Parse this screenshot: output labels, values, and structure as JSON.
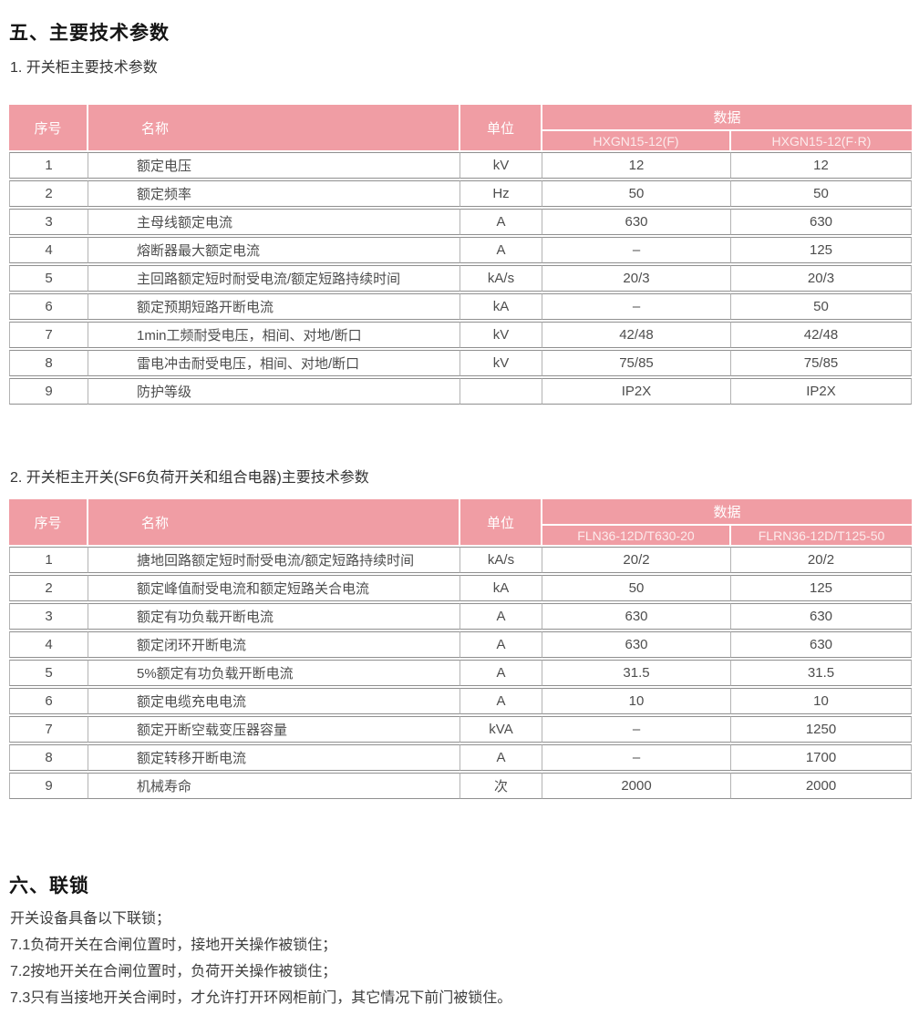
{
  "colors": {
    "header_pink": "#f09da4",
    "header_text": "#ffffff",
    "model_text": "#fcebec",
    "row_line": "#8f8f8f",
    "column_line": "#b3b3b3",
    "body_text": "#4d4d4d"
  },
  "sections": {
    "s5_title": "五、主要技术参数",
    "table1_caption": "1. 开关柜主要技术参数",
    "table2_caption": "2. 开关柜主开关(SF6负荷开关和组合电器)主要技术参数",
    "s6_title": "六、联锁"
  },
  "table1": {
    "headers": {
      "no": "序号",
      "name": "名称",
      "unit": "单位",
      "data": "数据"
    },
    "models": [
      "HXGN15-12(F)",
      "HXGN15-12(F·R)"
    ],
    "rows": [
      {
        "no": "1",
        "name": "额定电压",
        "unit": "kV",
        "v1": "12",
        "v2": "12"
      },
      {
        "no": "2",
        "name": "额定频率",
        "unit": "Hz",
        "v1": "50",
        "v2": "50"
      },
      {
        "no": "3",
        "name": "主母线额定电流",
        "unit": "A",
        "v1": "630",
        "v2": "630"
      },
      {
        "no": "4",
        "name": "熔断器最大额定电流",
        "unit": "A",
        "v1": "–",
        "v2": "125"
      },
      {
        "no": "5",
        "name": "主回路额定短时耐受电流/额定短路持续时间",
        "unit": "kA/s",
        "v1": "20/3",
        "v2": "20/3"
      },
      {
        "no": "6",
        "name": "额定预期短路开断电流",
        "unit": "kA",
        "v1": "–",
        "v2": "50"
      },
      {
        "no": "7",
        "name": "1min工频耐受电压，相间、对地/断口",
        "unit": "kV",
        "v1": "42/48",
        "v2": "42/48"
      },
      {
        "no": "8",
        "name": "雷电冲击耐受电压，相间、对地/断口",
        "unit": "kV",
        "v1": "75/85",
        "v2": "75/85"
      },
      {
        "no": "9",
        "name": "防护等级",
        "unit": "",
        "v1": "IP2X",
        "v2": "IP2X"
      }
    ]
  },
  "table2": {
    "headers": {
      "no": "序号",
      "name": "名称",
      "unit": "单位",
      "data": "数据"
    },
    "models": [
      "FLN36-12D/T630-20",
      "FLRN36-12D/T125-50"
    ],
    "rows": [
      {
        "no": "1",
        "name": "搪地回路额定短时耐受电流/额定短路持续时间",
        "unit": "kA/s",
        "v1": "20/2",
        "v2": "20/2"
      },
      {
        "no": "2",
        "name": "额定峰值耐受电流和额定短路关合电流",
        "unit": "kA",
        "v1": "50",
        "v2": "125"
      },
      {
        "no": "3",
        "name": "额定有功负载开断电流",
        "unit": "A",
        "v1": "630",
        "v2": "630"
      },
      {
        "no": "4",
        "name": "额定闭环开断电流",
        "unit": "A",
        "v1": "630",
        "v2": "630"
      },
      {
        "no": "5",
        "name": "5%额定有功负载开断电流",
        "unit": "A",
        "v1": "31.5",
        "v2": "31.5"
      },
      {
        "no": "6",
        "name": "额定电缆充电电流",
        "unit": "A",
        "v1": "10",
        "v2": "10"
      },
      {
        "no": "7",
        "name": "额定开断空载变压器容量",
        "unit": "kVA",
        "v1": "–",
        "v2": "1250"
      },
      {
        "no": "8",
        "name": "额定转移开断电流",
        "unit": "A",
        "v1": "–",
        "v2": "1700"
      },
      {
        "no": "9",
        "name": "机械寿命",
        "unit": "次",
        "v1": "2000",
        "v2": "2000"
      }
    ]
  },
  "interlock": {
    "lines": [
      "开关设备具备以下联锁；",
      "7.1负荷开关在合闸位置时，接地开关操作被锁住；",
      "7.2按地开关在合闸位置时，负荷开关操作被锁住；",
      "7.3只有当接地开关合闸时，才允许打开环网柜前门，其它情况下前门被锁住。"
    ]
  }
}
